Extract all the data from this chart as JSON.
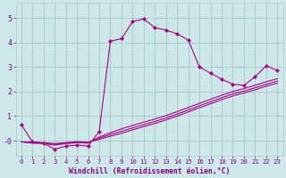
{
  "background_color": "#cce8e8",
  "grid_color": "#aacccc",
  "line_color": "#aa0088",
  "marker_color": "#aa0088",
  "xlabel": "Windchill (Refroidissement éolien,°C)",
  "xlabel_color": "#880088",
  "tick_color": "#880088",
  "xlim": [
    -0.5,
    23.5
  ],
  "ylim": [
    -0.6,
    5.6
  ],
  "ytick_vals": [
    0,
    1,
    2,
    3,
    4,
    5
  ],
  "ytick_labels": [
    "-0",
    "1",
    "2",
    "3",
    "4",
    "5"
  ],
  "xtick_vals": [
    0,
    1,
    2,
    3,
    4,
    5,
    6,
    7,
    8,
    9,
    10,
    11,
    12,
    13,
    14,
    15,
    16,
    17,
    18,
    19,
    20,
    21,
    22,
    23
  ],
  "curve1_x": [
    0,
    1,
    2,
    3,
    4,
    5,
    6,
    7,
    8,
    9,
    10,
    11,
    12,
    13,
    14,
    15,
    16,
    17,
    18,
    19,
    20,
    21,
    22,
    23
  ],
  "curve1_y": [
    0.65,
    -0.05,
    -0.1,
    -0.35,
    -0.22,
    -0.18,
    -0.22,
    0.38,
    4.05,
    4.15,
    4.85,
    4.95,
    4.6,
    4.5,
    4.35,
    4.1,
    3.0,
    2.75,
    2.5,
    2.3,
    2.25,
    2.6,
    3.05,
    2.85
  ],
  "curve2_x": [
    0,
    1,
    2,
    3,
    4,
    5,
    6,
    7,
    8,
    9,
    10,
    11,
    12,
    13,
    14,
    15,
    16,
    17,
    18,
    19,
    20,
    21,
    22,
    23
  ],
  "curve2_y": [
    -0.05,
    -0.1,
    -0.12,
    -0.18,
    -0.12,
    -0.08,
    -0.1,
    0.15,
    0.32,
    0.48,
    0.62,
    0.75,
    0.88,
    1.02,
    1.18,
    1.35,
    1.52,
    1.68,
    1.85,
    2.0,
    2.12,
    2.25,
    2.4,
    2.52
  ],
  "curve3_x": [
    0,
    1,
    2,
    3,
    4,
    5,
    6,
    7,
    8,
    9,
    10,
    11,
    12,
    13,
    14,
    15,
    16,
    17,
    18,
    19,
    20,
    21,
    22,
    23
  ],
  "curve3_y": [
    -0.05,
    -0.08,
    -0.1,
    -0.15,
    -0.1,
    -0.06,
    -0.08,
    0.1,
    0.25,
    0.38,
    0.52,
    0.65,
    0.78,
    0.92,
    1.08,
    1.25,
    1.42,
    1.58,
    1.75,
    1.9,
    2.02,
    2.15,
    2.3,
    2.42
  ],
  "curve4_x": [
    0,
    1,
    2,
    3,
    4,
    5,
    6,
    7,
    8,
    9,
    10,
    11,
    12,
    13,
    14,
    15,
    16,
    17,
    18,
    19,
    20,
    21,
    22,
    23
  ],
  "curve4_y": [
    -0.05,
    -0.06,
    -0.08,
    -0.12,
    -0.08,
    -0.04,
    -0.06,
    0.05,
    0.18,
    0.3,
    0.44,
    0.57,
    0.7,
    0.84,
    1.0,
    1.17,
    1.34,
    1.5,
    1.67,
    1.82,
    1.94,
    2.07,
    2.22,
    2.34
  ]
}
